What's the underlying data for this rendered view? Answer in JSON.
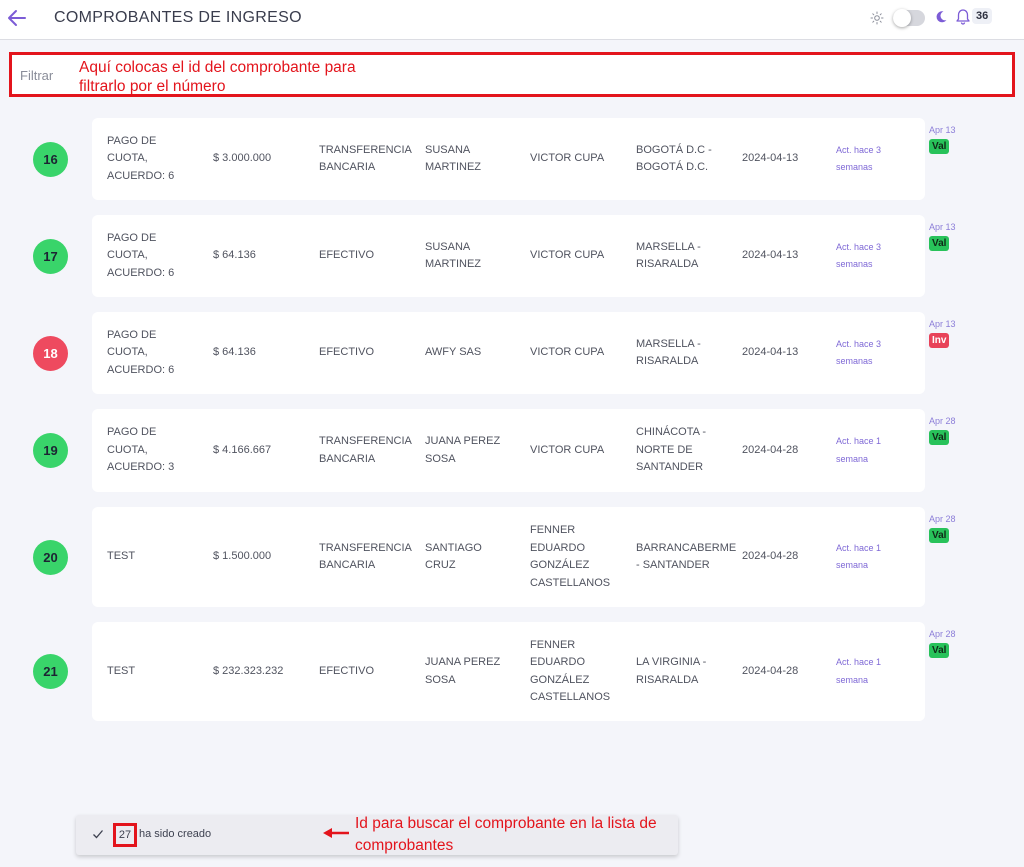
{
  "header": {
    "title": "COMPROBANTES DE INGRESO",
    "notification_count": "36"
  },
  "filter": {
    "placeholder": "Filtrar",
    "annotation": "Aquí colocas el id del comprobante para filtrarlo por el número"
  },
  "rows": [
    {
      "id": "16",
      "status": "Val",
      "concept": [
        "PAGO DE",
        "CUOTA,",
        "ACUERDO: 6"
      ],
      "amount": "$ 3.000.000",
      "method": [
        "TRANSFERENCIA",
        "BANCARIA"
      ],
      "payer": [
        "SUSANA",
        "MARTINEZ"
      ],
      "creator": [
        "VICTOR CUPA"
      ],
      "city": [
        "BOGOTÁ D.C -",
        "BOGOTÁ D.C."
      ],
      "date": "2024-04-13",
      "updated": [
        "Act. hace 3",
        "semanas"
      ],
      "side_date": "Apr 13"
    },
    {
      "id": "17",
      "status": "Val",
      "concept": [
        "PAGO DE",
        "CUOTA,",
        "ACUERDO: 6"
      ],
      "amount": "$ 64.136",
      "method": [
        "EFECTIVO"
      ],
      "payer": [
        "SUSANA",
        "MARTINEZ"
      ],
      "creator": [
        "VICTOR CUPA"
      ],
      "city": [
        "MARSELLA -",
        "RISARALDA"
      ],
      "date": "2024-04-13",
      "updated": [
        "Act. hace 3",
        "semanas"
      ],
      "side_date": "Apr 13"
    },
    {
      "id": "18",
      "status": "Inv",
      "concept": [
        "PAGO DE",
        "CUOTA,",
        "ACUERDO: 6"
      ],
      "amount": "$ 64.136",
      "method": [
        "EFECTIVO"
      ],
      "payer": [
        "AWFY SAS"
      ],
      "creator": [
        "VICTOR CUPA"
      ],
      "city": [
        "MARSELLA -",
        "RISARALDA"
      ],
      "date": "2024-04-13",
      "updated": [
        "Act. hace 3",
        "semanas"
      ],
      "side_date": "Apr 13"
    },
    {
      "id": "19",
      "status": "Val",
      "concept": [
        "PAGO DE",
        "CUOTA,",
        "ACUERDO: 3"
      ],
      "amount": "$ 4.166.667",
      "method": [
        "TRANSFERENCIA",
        "BANCARIA"
      ],
      "payer": [
        "JUANA PEREZ",
        "SOSA"
      ],
      "creator": [
        "VICTOR CUPA"
      ],
      "city": [
        "CHINÁCOTA -",
        "NORTE DE",
        "SANTANDER"
      ],
      "date": "2024-04-28",
      "updated": [
        "Act. hace 1",
        "semana"
      ],
      "side_date": "Apr 28"
    },
    {
      "id": "20",
      "status": "Val",
      "concept": [
        "TEST"
      ],
      "amount": "$ 1.500.000",
      "method": [
        "TRANSFERENCIA",
        "BANCARIA"
      ],
      "payer": [
        "SANTIAGO",
        "CRUZ"
      ],
      "creator": [
        "FENNER",
        "EDUARDO",
        "GONZÁLEZ",
        "CASTELLANOS"
      ],
      "city": [
        "BARRANCABERME",
        "- SANTANDER"
      ],
      "date": "2024-04-28",
      "updated": [
        "Act. hace 1",
        "semana"
      ],
      "side_date": "Apr 28"
    },
    {
      "id": "21",
      "status": "Val",
      "concept": [
        "TEST"
      ],
      "amount": "$ 232.323.232",
      "method": [
        "EFECTIVO"
      ],
      "payer": [
        "JUANA PEREZ",
        "SOSA"
      ],
      "creator": [
        "FENNER",
        "EDUARDO",
        "GONZÁLEZ",
        "CASTELLANOS"
      ],
      "city": [
        "LA VIRGINIA -",
        "RISARALDA"
      ],
      "date": "2024-04-28",
      "updated": [
        "Act. hace 1",
        "semana"
      ],
      "side_date": "Apr 28"
    }
  ],
  "toast": {
    "id": "27",
    "message": "ha sido creado",
    "annotation": "Id para buscar el comprobante en la lista de comprobantes"
  },
  "colors": {
    "accent": "#7c5cd6",
    "annotation_red": "#e3141c",
    "valid_green": "#39d46a",
    "invalid_red": "#ee4a5f"
  },
  "icons": {
    "back": "back-arrow-icon",
    "theme_light": "sun-icon",
    "theme_dark": "moon-icon",
    "notifications": "bell-icon",
    "toast": "check-icon"
  }
}
